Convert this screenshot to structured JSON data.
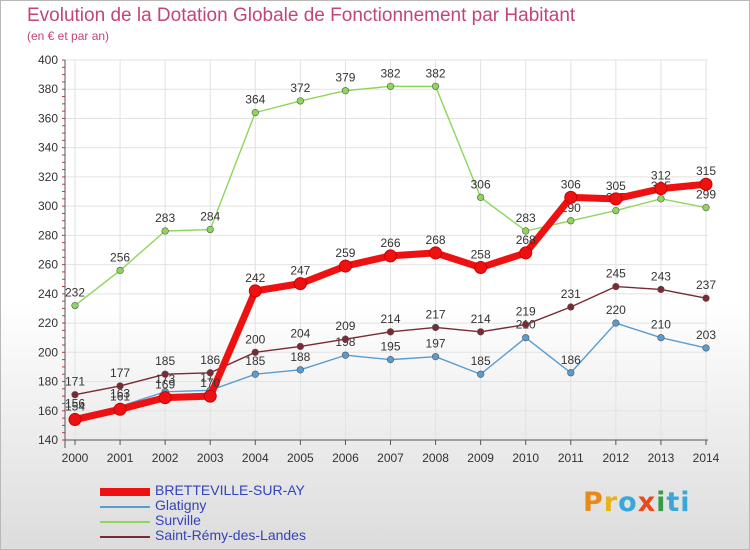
{
  "header": {
    "title": "Evolution de la Dotation Globale de Fonctionnement par Habitant",
    "subtitle": "(en € et par an)"
  },
  "logo": {
    "text": "ProXiti",
    "letters": [
      "P",
      "r",
      "o",
      "x",
      "i",
      "t",
      "i"
    ],
    "colors": [
      "#e88a1a",
      "#e8b21a",
      "#39a8d8",
      "#e84a1a",
      "#3a9a4a",
      "#39a8d8",
      "#39a8d8"
    ]
  },
  "chart_data": {
    "type": "line",
    "title": "Evolution de la Dotation Globale de Fonctionnement par Habitant",
    "subtitle": "(en € et par an)",
    "xlabel": "",
    "ylabel": "",
    "ylim": [
      140,
      400
    ],
    "yticks": [
      140,
      160,
      180,
      200,
      220,
      240,
      260,
      280,
      300,
      320,
      340,
      360,
      380,
      400
    ],
    "grid": true,
    "legend_position": "bottom-left",
    "categories": [
      "2000",
      "2001",
      "2002",
      "2003",
      "2004",
      "2005",
      "2006",
      "2007",
      "2008",
      "2009",
      "2010",
      "2011",
      "2012",
      "2013",
      "2014"
    ],
    "series": [
      {
        "name": "Surville",
        "color": "#8ed65a",
        "values": [
          232,
          256,
          283,
          284,
          364,
          372,
          379,
          382,
          382,
          306,
          283,
          290,
          297,
          305,
          299
        ]
      },
      {
        "name": "Glatigny",
        "color": "#5a9ccf",
        "values": [
          156,
          163,
          173,
          174,
          185,
          188,
          198,
          195,
          197,
          185,
          210,
          186,
          220,
          210,
          203
        ]
      },
      {
        "name": "Saint-Rémy-des-Landes",
        "color": "#7a2a30",
        "values": [
          171,
          177,
          185,
          186,
          200,
          204,
          209,
          214,
          217,
          214,
          219,
          231,
          245,
          243,
          237
        ]
      },
      {
        "name": "BRETTEVILLE-SUR-AY",
        "color": "#ee1111",
        "values": [
          154,
          161,
          169,
          170,
          242,
          247,
          259,
          266,
          268,
          258,
          268,
          306,
          305,
          312,
          315
        ]
      }
    ]
  }
}
